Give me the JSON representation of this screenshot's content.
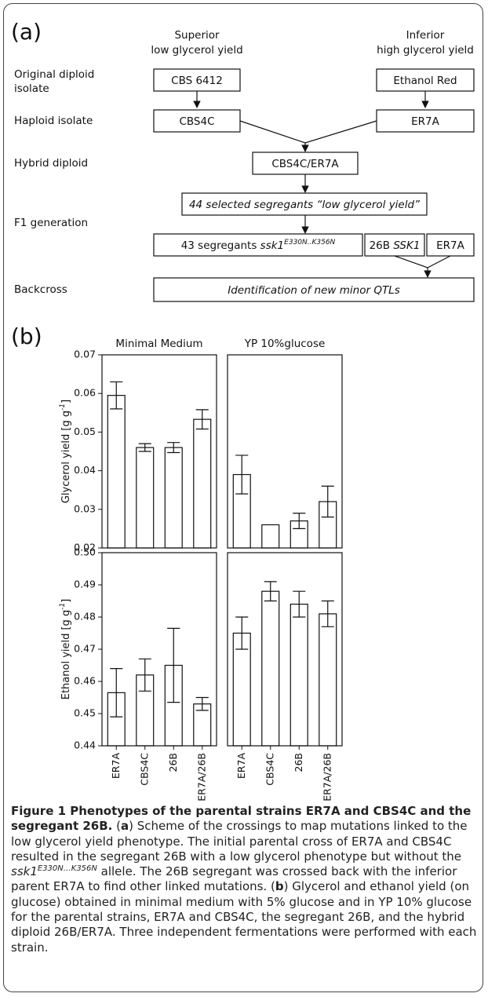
{
  "diagram": {
    "label": "(a)",
    "columns": [
      [
        "Superior",
        "low glycerol yield"
      ],
      [
        "Inferior",
        "high glycerol yield"
      ]
    ],
    "rows": [
      [
        "Original diploid",
        "isolate"
      ],
      [
        "Haploid isolate"
      ],
      [
        "Hybrid diploid"
      ],
      [
        "F1 generation"
      ],
      [
        "Backcross"
      ]
    ],
    "boxes": [
      "CBS 6412",
      "Ethanol Red",
      "CBS4C",
      "ER7A",
      "CBS4C/ER7A",
      [
        {
          "text": "44 selected segregants “low glycerol yield”",
          "style": "italic"
        }
      ],
      [
        {
          "text": "43 segregants "
        },
        {
          "text": "ssk1",
          "style": "italic"
        },
        {
          "text": "E330N..K356N",
          "style": "sup"
        }
      ],
      [
        {
          "text": "26B "
        },
        {
          "text": "SSK1",
          "style": "italic"
        }
      ],
      "ER7A",
      [
        {
          "text": "Identification of new minor QTLs",
          "style": "italic"
        }
      ]
    ]
  },
  "panel_b_label": "(b)",
  "chart_data": [
    {
      "type": "bar",
      "title": "Minimal Medium",
      "ylabel": [
        {
          "text": "Glycerol yield [g g"
        },
        {
          "text": "-1",
          "style": "sup"
        },
        {
          "text": "]"
        }
      ],
      "values": [
        0.0595,
        0.046,
        0.046,
        0.0533
      ],
      "errors": [
        0.0035,
        0.001,
        0.0013,
        0.0025
      ],
      "ylim": [
        0.02,
        0.07
      ],
      "yticks": [
        0.02,
        0.03,
        0.04,
        0.05,
        0.06,
        0.07
      ],
      "color": "#ffffff"
    },
    {
      "type": "bar",
      "title": "YP 10%glucose",
      "values": [
        0.039,
        0.026,
        0.027,
        0.032
      ],
      "errors": [
        0.005,
        null,
        0.002,
        0.004
      ],
      "ylim": [
        0.02,
        0.07
      ],
      "color": "#ffffff"
    },
    {
      "type": "bar",
      "ylabel": [
        {
          "text": "Ethanol yield [g g"
        },
        {
          "text": "-1",
          "style": "sup"
        },
        {
          "text": "]"
        }
      ],
      "categories": [
        "ER7A",
        "CBS4C",
        "26B",
        "ER7A/26B"
      ],
      "values": [
        0.4565,
        0.462,
        0.465,
        0.453
      ],
      "errors": [
        0.0075,
        0.005,
        0.0115,
        0.002
      ],
      "ylim": [
        0.44,
        0.5
      ],
      "yticks": [
        0.44,
        0.45,
        0.46,
        0.47,
        0.48,
        0.49,
        {
          "value": 0.5,
          "label": "0.50"
        }
      ],
      "color": "#ffffff"
    },
    {
      "type": "bar",
      "categories": [
        "ER7A",
        "CBS4C",
        "26B",
        "ER7A/26B"
      ],
      "values": [
        0.475,
        0.488,
        0.484,
        0.481
      ],
      "errors": [
        0.005,
        0.003,
        0.004,
        0.004
      ],
      "ylim": [
        0.44,
        0.5
      ],
      "color": "#ffffff"
    }
  ],
  "caption": {
    "runs": [
      {
        "text": "Figure 1 Phenotypes of the parental strains ER7A and CBS4C and the segregant 26B.",
        "style": "bold"
      },
      {
        "text": " ("
      },
      {
        "text": "a",
        "style": "bold"
      },
      {
        "text": ") Scheme of the crossings to map mutations linked to the low glycerol yield phenotype. The initial parental cross of ER7A and CBS4C resulted in the segregant 26B with a low glycerol phenotype but without the "
      },
      {
        "text": "ssk1",
        "style": "italic"
      },
      {
        "text": "E330N…K356N",
        "style": "sup"
      },
      {
        "text": " allele. The 26B segregant was crossed back with the inferior parent ER7A to find other linked mutations. ("
      },
      {
        "text": "b",
        "style": "bold"
      },
      {
        "text": ") Glycerol and ethanol yield (on glucose) obtained in minimal medium with 5% glucose and in YP 10% glucose for the parental strains, ER7A and CBS4C, the segregant 26B, and the hybrid diploid 26B/ER7A. Three independent fermentations were performed with each strain."
      }
    ]
  }
}
